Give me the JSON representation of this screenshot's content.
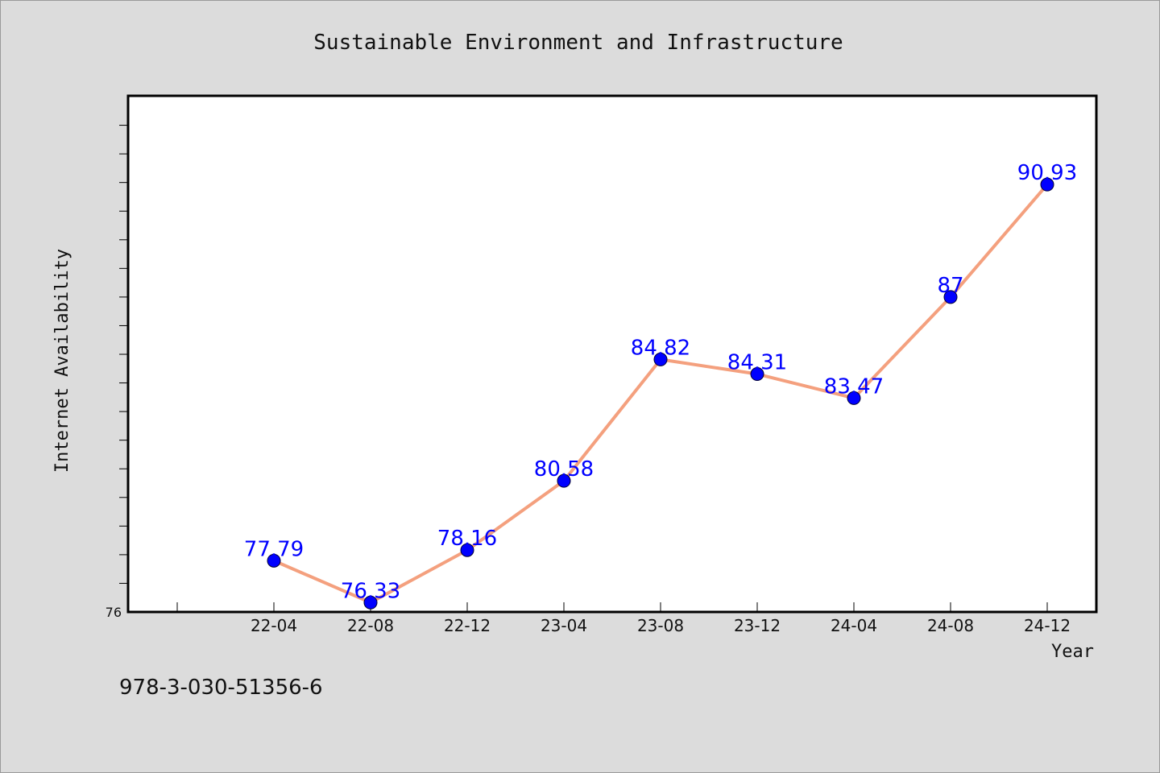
{
  "chart_data": {
    "type": "line",
    "title": "Sustainable Environment and Infrastructure",
    "xlabel": "Year",
    "ylabel": "Internet Availability",
    "categories": [
      "22-04",
      "22-08",
      "22-12",
      "23-04",
      "23-08",
      "23-12",
      "24-04",
      "24-08",
      "24-12"
    ],
    "series": [
      {
        "values": [
          77.79,
          76.33,
          78.16,
          80.58,
          84.82,
          84.31,
          83.47,
          87,
          90.93
        ]
      }
    ],
    "data_labels": [
      "77.79",
      "76.33",
      "78.16",
      "80.58",
      "84.82",
      "84.31",
      "83.47",
      "87",
      "90.93"
    ],
    "y_tick_labels": [
      "76"
    ],
    "ylim": [
      76,
      94
    ],
    "grid": false,
    "colors": {
      "line": "#f4a07e",
      "marker": "#0000ff",
      "label": "#0000ff",
      "plot_bg": "#ffffff",
      "page_bg": "#dcdcdc"
    }
  },
  "footer": {
    "text": "978-3-030-51356-6"
  }
}
